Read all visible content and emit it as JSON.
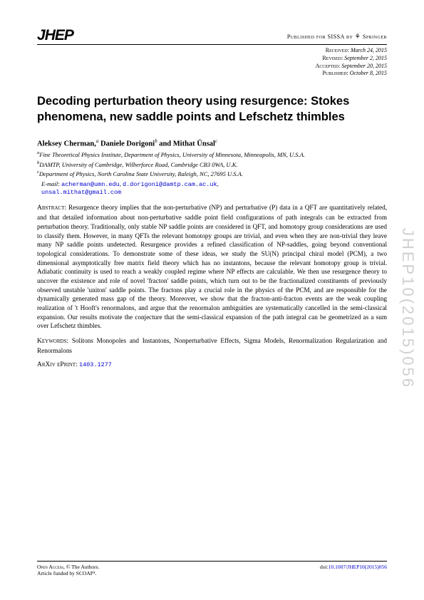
{
  "logo_text": "JHEP",
  "published_for": "Published for SISSA by",
  "publisher": "Springer",
  "dates": {
    "received_label": "Received:",
    "received_value": "March 24, 2015",
    "revised_label": "Revised:",
    "revised_value": "September 2, 2015",
    "accepted_label": "Accepted:",
    "accepted_value": "September 20, 2015",
    "published_label": "Published:",
    "published_value": "October 8, 2015"
  },
  "title": "Decoding perturbation theory using resurgence: Stokes phenomena, new saddle points and Lefschetz thimbles",
  "authors_html": "Aleksey Cherman,ᵃ Daniele Dorigoniᵇ and Mithat Ünsalᶜ",
  "affiliations": {
    "a": "Fine Theoretical Physics Institute, Department of Physics, University of Minnesota, Minneapolis, MN, U.S.A.",
    "b": "DAMTP, University of Cambridge, Wilberforce Road, Cambridge CB3 0WA, U.K.",
    "c": "Department of Physics, North Carolina State University, Raleigh, NC, 27695 U.S.A."
  },
  "email_label": "E-mail:",
  "emails": [
    "acherman@umn.edu",
    "d.dorigoni@damtp.cam.ac.uk",
    "unsal.mithat@gmail.com"
  ],
  "abstract_label": "Abstract:",
  "abstract": "Resurgence theory implies that the non-perturbative (NP) and perturbative (P) data in a QFT are quantitatively related, and that detailed information about non-perturbative saddle point field configurations of path integrals can be extracted from perturbation theory. Traditionally, only stable NP saddle points are considered in QFT, and homotopy group considerations are used to classify them. However, in many QFTs the relevant homotopy groups are trivial, and even when they are non-trivial they leave many NP saddle points undetected. Resurgence provides a refined classification of NP-saddles, going beyond conventional topological considerations. To demonstrate some of these ideas, we study the SU(N) principal chiral model (PCM), a two dimensional asymptotically free matrix field theory which has no instantons, because the relevant homotopy group is trivial. Adiabatic continuity is used to reach a weakly coupled regime where NP effects are calculable. We then use resurgence theory to uncover the existence and role of novel 'fracton' saddle points, which turn out to be the fractionalized constituents of previously observed unstable 'uniton' saddle points. The fractons play a crucial role in the physics of the PCM, and are responsible for the dynamically generated mass gap of the theory. Moreover, we show that the fracton-anti-fracton events are the weak coupling realization of 't Hooft's renormalons, and argue that the renormalon ambiguities are systematically cancelled in the semi-classical expansion. Our results motivate the conjecture that the semi-classical expansion of the path integral can be geometrized as a sum over Lefschetz thimbles.",
  "keywords_label": "Keywords:",
  "keywords": "Solitons Monopoles and Instantons, Nonperturbative Effects, Sigma Models, Renormalization Regularization and Renormalons",
  "arxiv_label": "ArXiv ePrint:",
  "arxiv_id": "1403.1277",
  "footer": {
    "open_access": "Open Access",
    "copyright": ", © The Authors.",
    "funded": "Article funded by SCOAP³.",
    "doi_prefix": "doi:",
    "doi": "10.1007/JHEP10(2015)056"
  },
  "sidebar": "JHEP10(2015)056",
  "colors": {
    "link": "#0000cc",
    "sidebar_text": "#d0d0d0",
    "text": "#000000",
    "background": "#ffffff"
  },
  "typography": {
    "title_fontsize": 16.5,
    "body_fontsize": 9.2,
    "footer_fontsize": 7.5
  }
}
